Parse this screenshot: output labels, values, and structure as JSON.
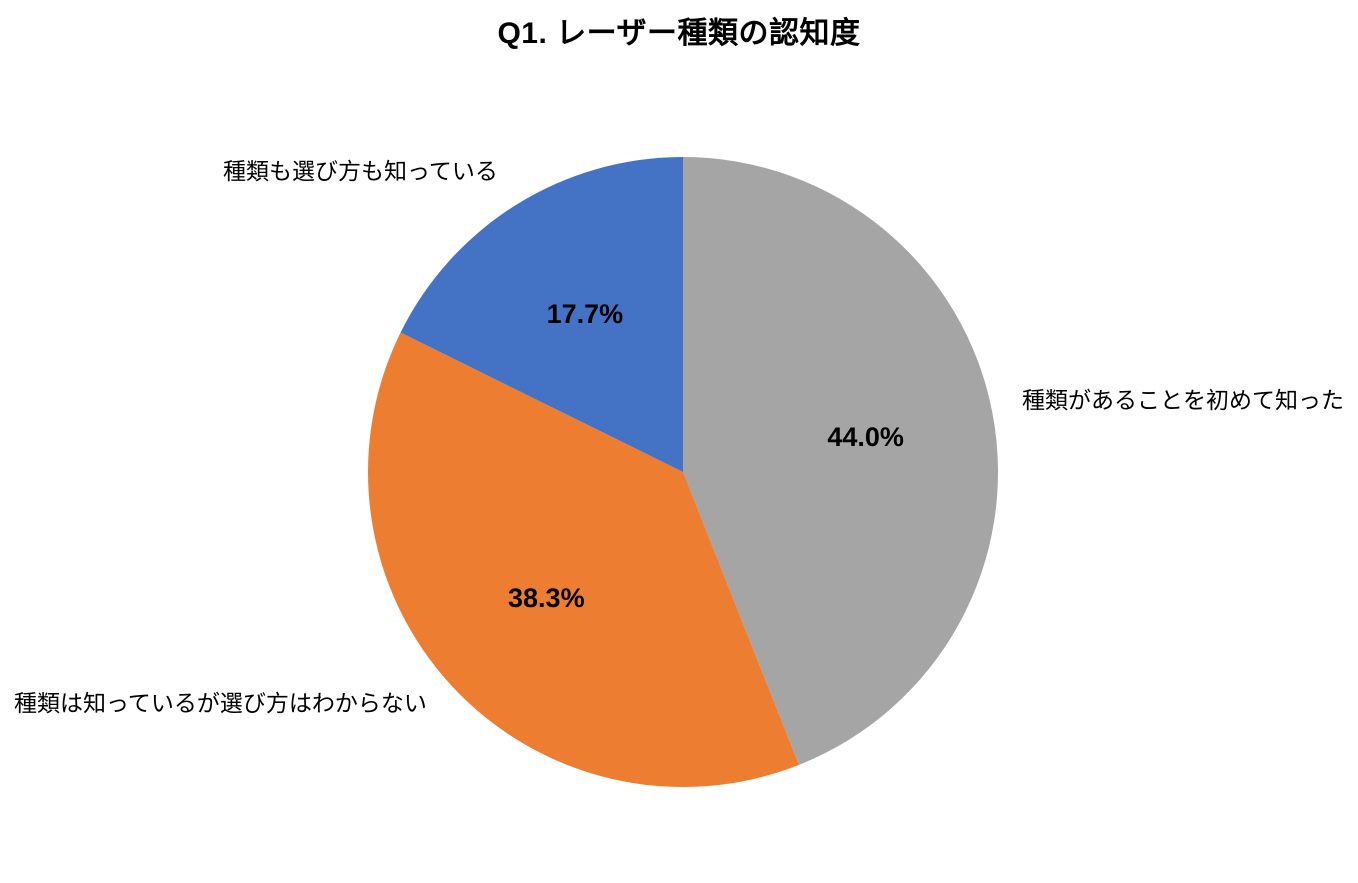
{
  "page": {
    "background_color": "#ffffff",
    "text_color": "#000000"
  },
  "chart_data": {
    "type": "pie",
    "title": "Q1. レーザー種類の認知度",
    "categories": [
      "種類があることを初めて知った",
      "種類は知っているが選び方はわからない",
      "種類も選び方も知っている"
    ],
    "values": [
      44.0,
      38.3,
      17.7
    ],
    "slices": [
      {
        "label": "種類があることを初めて知った",
        "value": 44.0,
        "display_value": "44.0%",
        "color": "#A5A5A5"
      },
      {
        "label": "種類は知っているが選び方はわからない",
        "value": 38.3,
        "display_value": "38.3%",
        "color": "#ED7D31"
      },
      {
        "label": "種類も選び方も知っている",
        "value": 17.7,
        "display_value": "17.7%",
        "color": "#4472C4"
      }
    ],
    "start_angle_deg": 0,
    "direction": "clockwise",
    "value_label_format": "percent_one_decimal",
    "value_label_color": "#000000",
    "legend_position": "none",
    "grid": false
  }
}
